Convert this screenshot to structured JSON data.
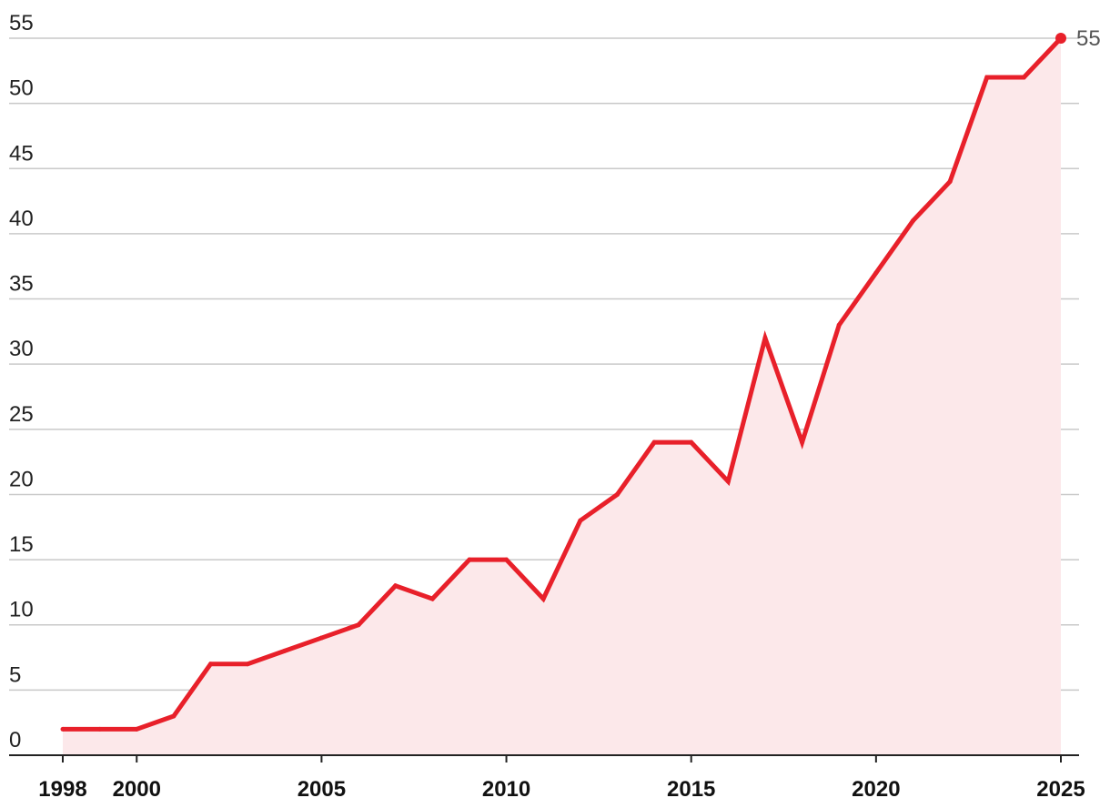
{
  "chart_data": {
    "type": "area",
    "x": [
      1998,
      1999,
      2000,
      2001,
      2002,
      2003,
      2004,
      2005,
      2006,
      2007,
      2008,
      2009,
      2010,
      2011,
      2012,
      2013,
      2014,
      2015,
      2016,
      2017,
      2018,
      2019,
      2020,
      2021,
      2022,
      2023,
      2024,
      2025
    ],
    "values": [
      2,
      2,
      2,
      3,
      7,
      7,
      8,
      9,
      10,
      13,
      12,
      15,
      15,
      12,
      18,
      20,
      24,
      24,
      21,
      32,
      24,
      33,
      37,
      41,
      44,
      52,
      52,
      55
    ],
    "ylim": [
      0,
      55
    ],
    "xlim": [
      1998,
      2025
    ],
    "y_ticks": [
      "0",
      "5",
      "10",
      "15",
      "20",
      "25",
      "30",
      "35",
      "40",
      "45",
      "50",
      "55"
    ],
    "x_ticks": [
      "1998",
      "2000",
      "2005",
      "2010",
      "2015",
      "2020",
      "2025"
    ],
    "end_label": "55",
    "grid": true,
    "colors": {
      "line": "#e8202a",
      "fill": "#fce8ea",
      "grid": "#c9c9c9",
      "axis": "#222222"
    }
  }
}
